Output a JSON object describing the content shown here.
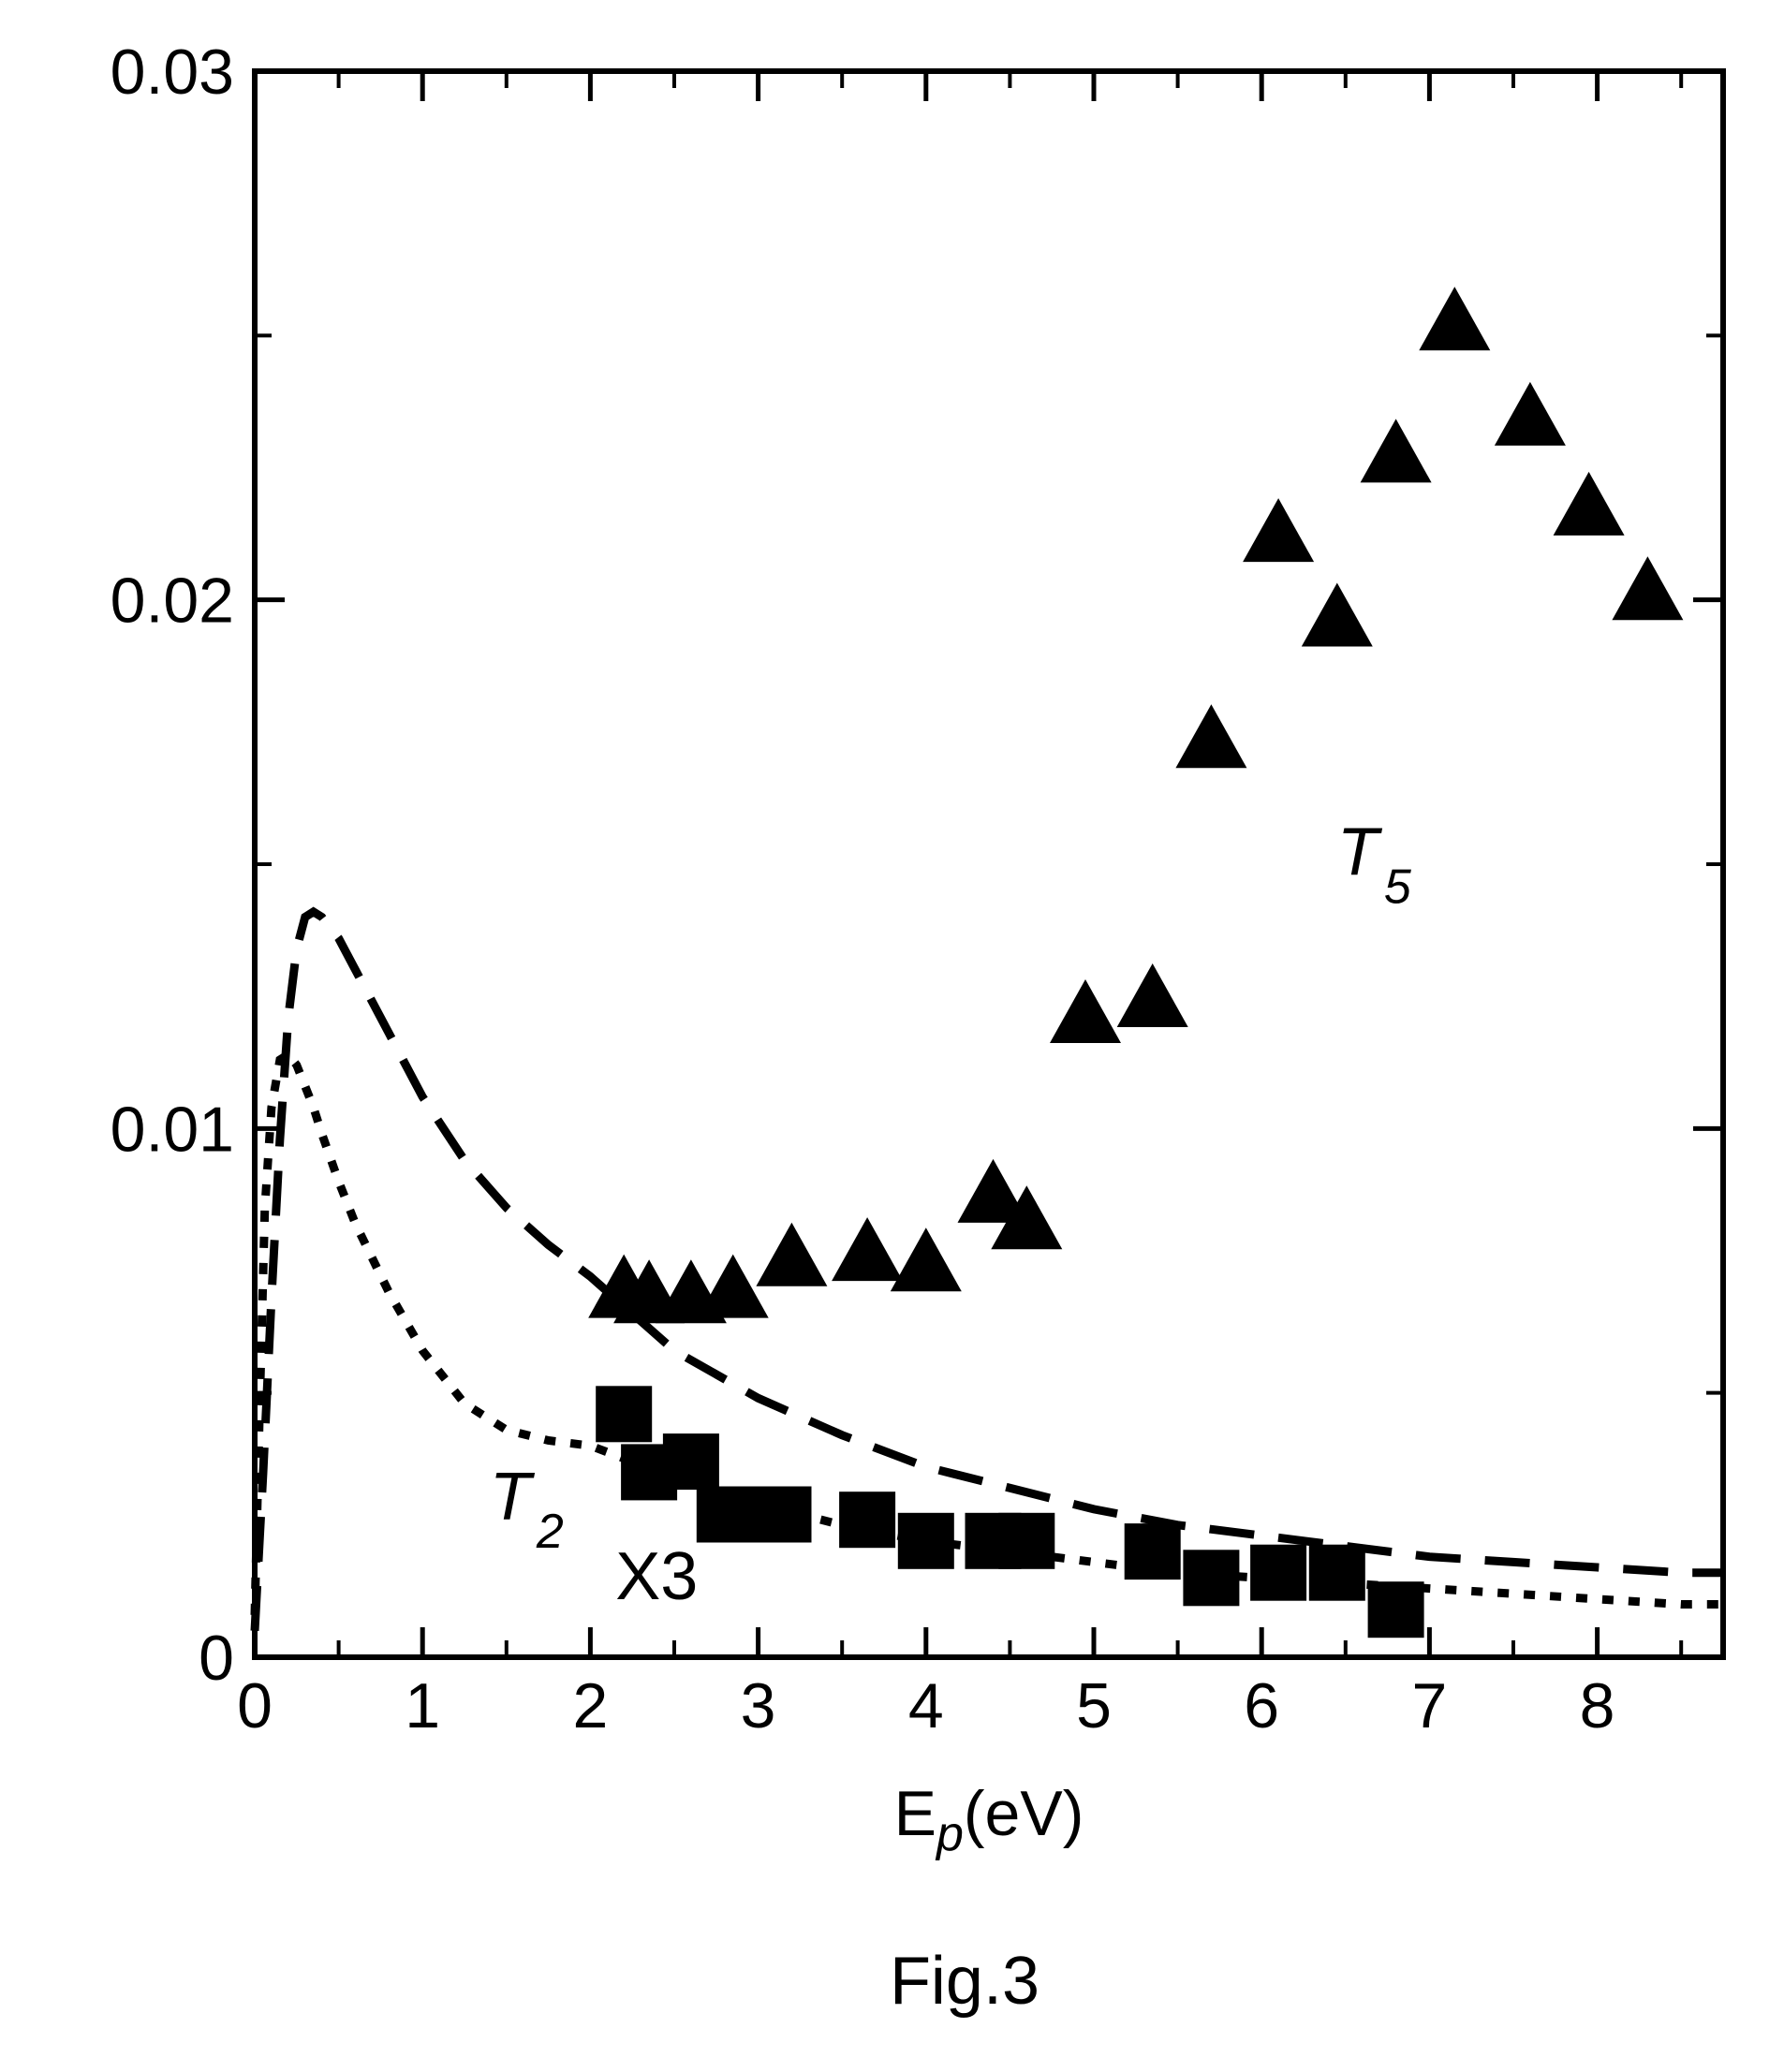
{
  "chart_data": {
    "type": "scatter",
    "title": "",
    "xlabel": {
      "base": "E",
      "sub": "p",
      "rest": "(eV)"
    },
    "ylabel": "",
    "xlim": [
      0,
      8.75
    ],
    "ylim": [
      0,
      0.03
    ],
    "x_ticks": [
      0,
      1,
      2,
      3,
      4,
      5,
      6,
      7,
      8
    ],
    "x_tick_labels": [
      "0",
      "1",
      "2",
      "3",
      "4",
      "5",
      "6",
      "7",
      "8"
    ],
    "y_ticks": [
      0,
      0.01,
      0.02,
      0.03
    ],
    "y_tick_labels": [
      "0",
      "0.01",
      "0.02",
      "0.03"
    ],
    "y_minor_ticks": [
      0.005,
      0.015,
      0.025
    ],
    "x_minor_ticks": [
      0.5,
      1.5,
      2.5,
      3.5,
      4.5,
      5.5,
      6.5,
      7.5,
      8.5
    ],
    "grid": false,
    "series": [
      {
        "name": "",
        "kind": "markers",
        "marker": "triangle",
        "x": [
          2.2,
          2.35,
          2.6,
          2.85,
          3.2,
          3.65,
          4.0,
          4.4,
          4.6,
          4.95,
          5.35,
          5.7,
          6.1,
          6.45,
          6.8,
          7.15,
          7.6,
          7.95,
          8.3
        ],
        "y": [
          0.0069,
          0.0068,
          0.0068,
          0.0069,
          0.0075,
          0.0076,
          0.0074,
          0.0087,
          0.0082,
          0.0121,
          0.0124,
          0.0173,
          0.0212,
          0.0196,
          0.0227,
          0.0252,
          0.0234,
          0.0217,
          0.0201
        ]
      },
      {
        "name": "",
        "kind": "markers",
        "marker": "square",
        "x": [
          2.2,
          2.35,
          2.6,
          2.8,
          3.0,
          3.15,
          3.65,
          4.0,
          4.4,
          4.6,
          5.35,
          5.7,
          6.1,
          6.45,
          6.8
        ],
        "y": [
          0.0046,
          0.0035,
          0.0037,
          0.0027,
          0.0027,
          0.0027,
          0.0026,
          0.0022,
          0.0022,
          0.0022,
          0.002,
          0.0015,
          0.0016,
          0.0016,
          0.0009
        ]
      },
      {
        "name": "",
        "kind": "curve",
        "style": "dashed",
        "x": [
          0.0,
          0.05,
          0.1,
          0.15,
          0.2,
          0.25,
          0.3,
          0.35,
          0.4,
          0.5,
          0.6,
          0.8,
          1.0,
          1.25,
          1.5,
          1.75,
          2.0,
          2.5,
          3.0,
          3.5,
          4.0,
          4.5,
          5.0,
          5.5,
          6.0,
          6.5,
          7.0,
          7.5,
          8.0,
          8.5,
          8.75
        ],
        "y": [
          0.0005,
          0.0035,
          0.0068,
          0.0098,
          0.0121,
          0.0134,
          0.014,
          0.0141,
          0.014,
          0.0136,
          0.013,
          0.0118,
          0.0106,
          0.0094,
          0.0085,
          0.0078,
          0.0072,
          0.0058,
          0.0049,
          0.0042,
          0.0036,
          0.0032,
          0.0028,
          0.0025,
          0.0023,
          0.0021,
          0.0019,
          0.0018,
          0.0017,
          0.0016,
          0.0016
        ]
      },
      {
        "name": "",
        "kind": "curve",
        "style": "dotted",
        "x": [
          0.0,
          0.03,
          0.06,
          0.1,
          0.15,
          0.2,
          0.25,
          0.3,
          0.35,
          0.4,
          0.5,
          0.6,
          0.8,
          1.0,
          1.25,
          1.5,
          1.75,
          2.0,
          2.5,
          3.0,
          3.5,
          4.0,
          4.5,
          5.0,
          5.5,
          6.0,
          6.5,
          7.0,
          7.5,
          8.0,
          8.5,
          8.75
        ],
        "y": [
          0.0008,
          0.0048,
          0.0085,
          0.0104,
          0.0113,
          0.0114,
          0.0112,
          0.0108,
          0.0104,
          0.0099,
          0.009,
          0.0082,
          0.0069,
          0.0058,
          0.0048,
          0.0043,
          0.0041,
          0.004,
          0.0034,
          0.0029,
          0.0025,
          0.0022,
          0.002,
          0.0018,
          0.0016,
          0.0015,
          0.0014,
          0.0013,
          0.0012,
          0.0011,
          0.001,
          0.001
        ]
      }
    ],
    "annotations": [
      {
        "base": "T",
        "sub": "5",
        "x": 6.45,
        "y": 0.0148
      },
      {
        "base": "T",
        "sub": "2",
        "x": 1.4,
        "y": 0.0026
      },
      {
        "text": "X3",
        "x": 2.15,
        "y": 0.0011
      }
    ],
    "caption": "Fig.3"
  }
}
